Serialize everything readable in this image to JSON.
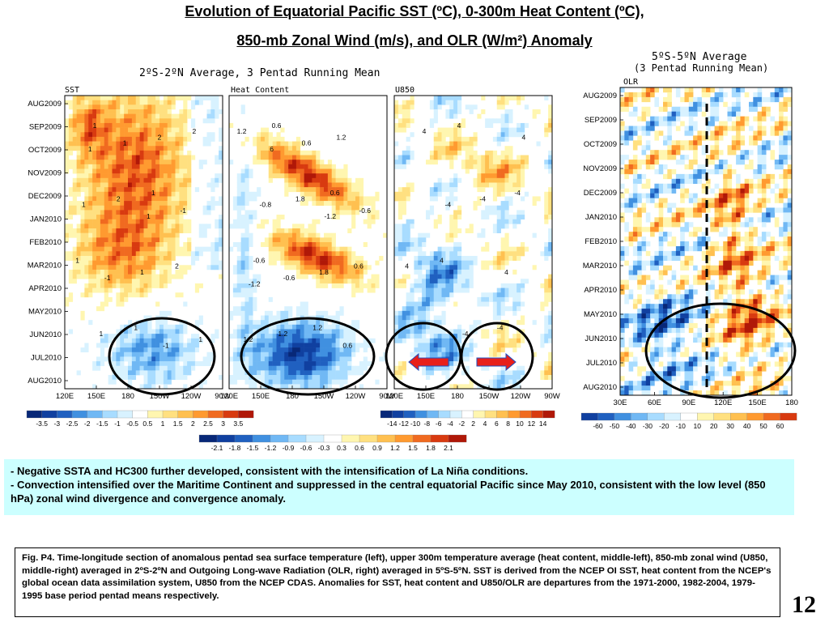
{
  "title": {
    "line1": "Evolution of Equatorial Pacific SST (ºC), 0-300m Heat Content (ºC),",
    "line2": "850-mb Zonal Wind (m/s), and OLR (W/m²) Anomaly"
  },
  "left_group_subtitle": "2ºS-2ºN Average, 3 Pentad Running Mean",
  "right_group_subtitle": {
    "line1": "5ºS-5ºN Average",
    "line2": "(3 Pentad Running Mean)"
  },
  "colors": {
    "info_bg": "#ccffff",
    "arrow_red": "#e8201a",
    "arrow_border": "#2050c0",
    "circle": "#000000"
  },
  "chart_data": [
    {
      "type": "heatmap",
      "panel_label": "SST",
      "y_ticks": [
        "AUG2009",
        "SEP2009",
        "OCT2009",
        "NOV2009",
        "DEC2009",
        "JAN2010",
        "FEB2010",
        "MAR2010",
        "APR2010",
        "MAY2010",
        "JUN2010",
        "JUL2010",
        "AUG2010"
      ],
      "x_ticks": [
        "120E",
        "150E",
        "180",
        "150W",
        "120W",
        "90W"
      ],
      "colorbar": [
        "-3.5",
        "-3",
        "-2.5",
        "-2",
        "-1.5",
        "-1",
        "-0.5",
        "0.5",
        "1",
        "1.5",
        "2",
        "2.5",
        "3",
        "3.5"
      ],
      "contour_labels": [
        "1",
        "1",
        "1",
        "1",
        "2",
        "2",
        "2",
        "1",
        "2",
        "1",
        "1",
        "1",
        "1",
        "-1",
        "-1",
        "-1",
        "1",
        "1"
      ]
    },
    {
      "type": "heatmap",
      "panel_label": "Heat Content",
      "y_ticks": [
        "AUG2009",
        "SEP2009",
        "OCT2009",
        "NOV2009",
        "DEC2009",
        "JAN2010",
        "FEB2010",
        "MAR2010",
        "APR2010",
        "MAY2010",
        "JUN2010",
        "JUL2010",
        "AUG2010"
      ],
      "x_ticks": [
        "120E",
        "150E",
        "180",
        "150W",
        "120W",
        "90W"
      ],
      "colorbar": [
        "-2.1",
        "-1.8",
        "-1.5",
        "-1.2",
        "-0.9",
        "-0.6",
        "-0.3",
        "0.3",
        "0.6",
        "0.9",
        "1.2",
        "1.5",
        "1.8",
        "2.1"
      ],
      "contour_labels": [
        "0.6",
        "0.6",
        "-0.6",
        "1.2",
        "1.2",
        "1.8",
        "0.6",
        "1.2",
        "1.2",
        "-0.8",
        "1.8",
        "1.2",
        "0.6",
        "-0.6",
        "-0.6",
        "0.6",
        "6",
        "-1.2",
        "-1.2"
      ]
    },
    {
      "type": "heatmap",
      "panel_label": "U850",
      "y_ticks": [
        "AUG2009",
        "SEP2009",
        "OCT2009",
        "NOV2009",
        "DEC2009",
        "JAN2010",
        "FEB2010",
        "MAR2010",
        "APR2010",
        "MAY2010",
        "JUN2010",
        "JUL2010",
        "AUG2010"
      ],
      "x_ticks": [
        "120E",
        "150E",
        "180",
        "150W",
        "120W",
        "90W"
      ],
      "colorbar": [
        "-14",
        "-12",
        "-10",
        "-8",
        "-6",
        "-4",
        "-2",
        "2",
        "4",
        "6",
        "8",
        "10",
        "12",
        "14"
      ],
      "contour_labels": [
        "4",
        "-4",
        "4",
        "-4",
        "4",
        "-4",
        "4",
        "-4",
        "4",
        "-4",
        "4"
      ]
    },
    {
      "type": "heatmap",
      "panel_label": "OLR",
      "y_ticks": [
        "AUG2009",
        "SEP2009",
        "OCT2009",
        "NOV2009",
        "DEC2009",
        "JAN2010",
        "FEB2010",
        "MAR2010",
        "APR2010",
        "MAY2010",
        "JUN2010",
        "JUL2010",
        "AUG2010"
      ],
      "x_ticks": [
        "30E",
        "60E",
        "90E",
        "120E",
        "150E",
        "180"
      ],
      "colorbar": [
        "-60",
        "-50",
        "-40",
        "-30",
        "-20",
        "-10",
        "10",
        "20",
        "30",
        "40",
        "50",
        "60"
      ]
    }
  ],
  "info_points": [
    "Negative SSTA and HC300 further developed, consistent with the intensification of La Niña conditions.",
    "Convection intensified over the Maritime Continent and suppressed in the central equatorial Pacific since May 2010, consistent with the low level (850 hPa) zonal wind divergence and convergence anomaly."
  ],
  "caption": "Fig. P4. Time-longitude section of anomalous pentad sea surface temperature (left), upper 300m temperature average (heat content, middle-left), 850-mb zonal wind (U850, middle-right) averaged in 2ºS-2ºN and Outgoing Long-wave Radiation (OLR, right) averaged in 5ºS-5ºN. SST is derived from the NCEP OI SST, heat content from the NCEP's global ocean data assimilation system, U850 from the NCEP CDAS. Anomalies for SST, heat content and U850/OLR are departures from the 1971-2000, 1982-2004, 1979-1995 base period pentad means respectively.",
  "page_number": "12"
}
